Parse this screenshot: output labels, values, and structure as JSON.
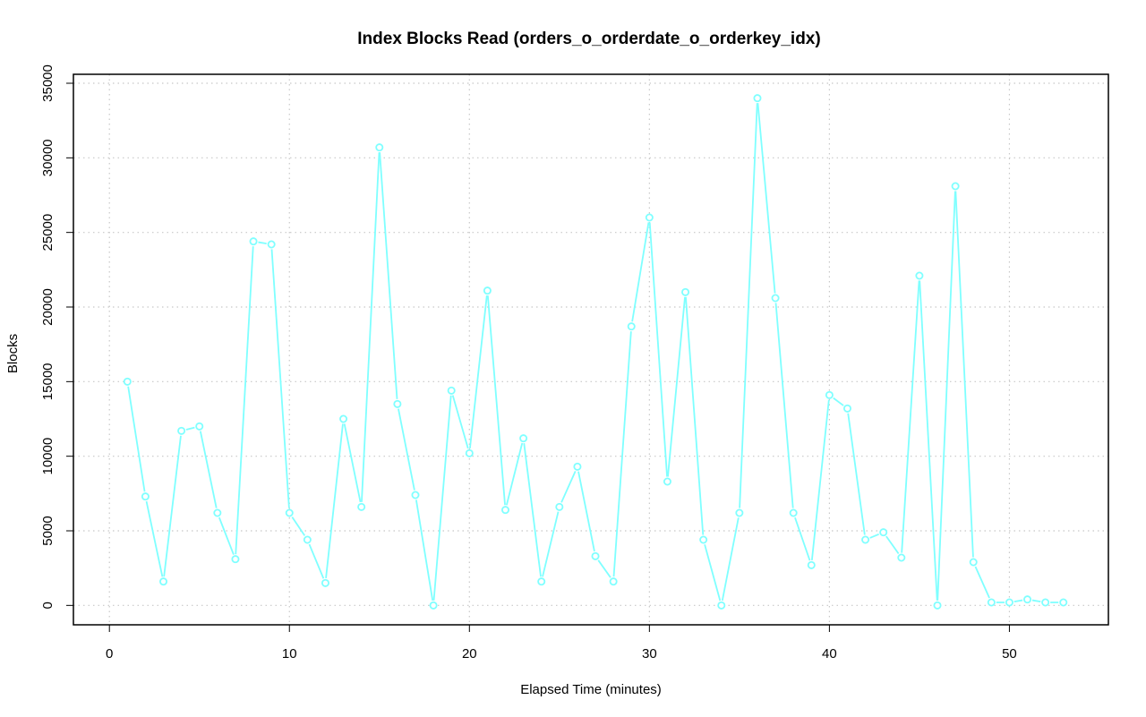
{
  "chart_data": {
    "type": "line",
    "title": "Index Blocks Read (orders_o_orderdate_o_orderkey_idx)",
    "xlabel": "Elapsed Time (minutes)",
    "ylabel": "Blocks",
    "xlim": [
      -2,
      55.5
    ],
    "ylim": [
      -1300,
      35600
    ],
    "x_ticks": [
      0,
      10,
      20,
      30,
      40,
      50
    ],
    "y_ticks": [
      0,
      5000,
      10000,
      15000,
      20000,
      25000,
      30000,
      35000
    ],
    "grid": true,
    "series": [
      {
        "color": "#7fffff",
        "marker": "open-circle",
        "x": [
          1,
          2,
          3,
          4,
          5,
          6,
          7,
          8,
          9,
          10,
          11,
          12,
          13,
          14,
          15,
          16,
          17,
          18,
          19,
          20,
          21,
          22,
          23,
          24,
          25,
          26,
          27,
          28,
          29,
          30,
          31,
          32,
          33,
          34,
          35,
          36,
          37,
          38,
          39,
          40,
          41,
          42,
          43,
          44,
          45,
          46,
          47,
          48,
          49,
          50,
          51,
          52,
          53
        ],
        "values": [
          15000,
          7300,
          1600,
          11700,
          12000,
          6200,
          3100,
          24400,
          24200,
          6200,
          4400,
          1500,
          12500,
          6600,
          30700,
          13500,
          7400,
          0,
          14400,
          10200,
          21100,
          6400,
          11200,
          1600,
          6600,
          9300,
          3300,
          1600,
          18700,
          26000,
          8300,
          21000,
          4400,
          0,
          6200,
          34000,
          20600,
          6200,
          2700,
          14100,
          13200,
          4400,
          4900,
          3200,
          22100,
          0,
          28100,
          2900,
          200,
          200,
          400,
          200,
          200
        ]
      }
    ]
  }
}
